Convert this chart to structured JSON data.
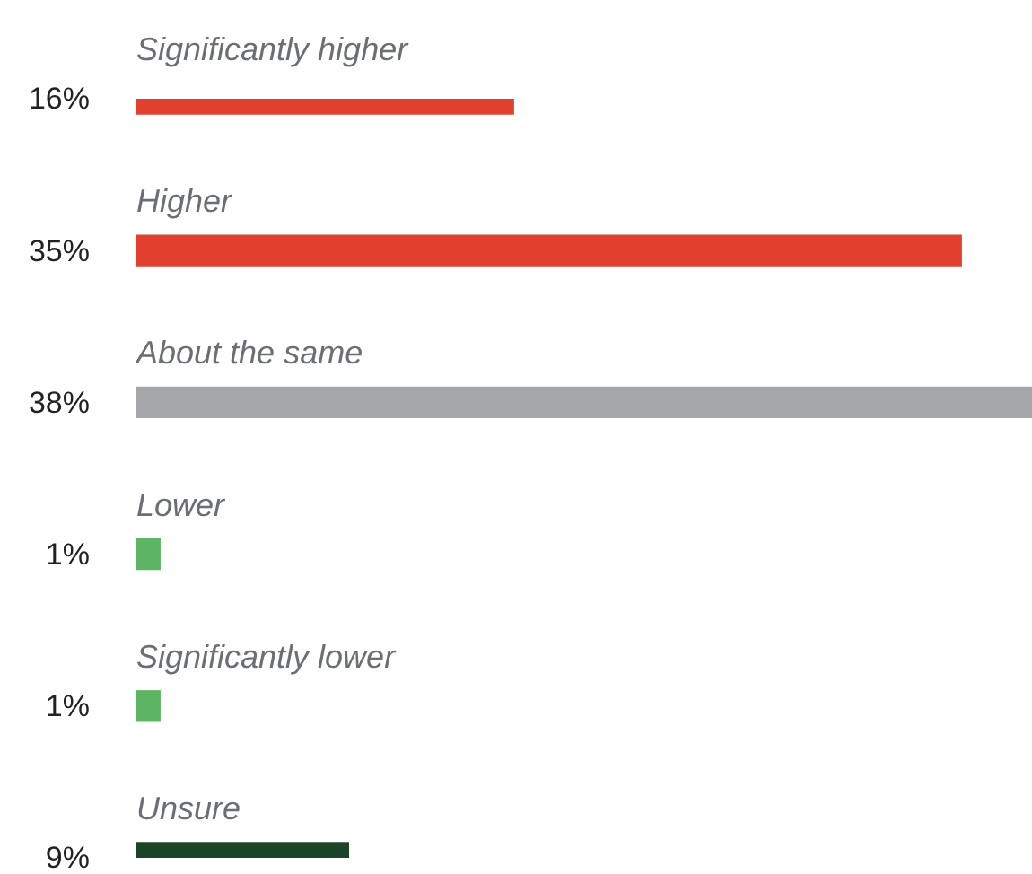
{
  "chart_data": {
    "type": "bar",
    "orientation": "horizontal",
    "categories": [
      "Significantly higher",
      "Higher",
      "About the same",
      "Lower",
      "Significantly lower",
      "Unsure"
    ],
    "values": [
      16,
      35,
      38,
      1,
      1,
      9
    ],
    "colors": [
      "#e2402f",
      "#e2402f",
      "#a5a6a9",
      "#5cb562",
      "#5cb562",
      "#1c4428"
    ],
    "value_labels": [
      "16%",
      "35%",
      "38%",
      "1%",
      "1%",
      "9%"
    ]
  }
}
